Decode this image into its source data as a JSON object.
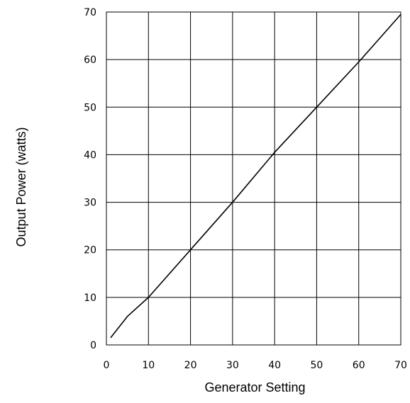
{
  "chart_data": {
    "type": "line",
    "title": "",
    "xlabel": "Generator Setting",
    "ylabel": "Output Power (watts)",
    "xlim": [
      0,
      70
    ],
    "ylim": [
      0,
      70
    ],
    "xticks": [
      0,
      10,
      20,
      30,
      40,
      50,
      60,
      70
    ],
    "yticks": [
      0,
      10,
      20,
      30,
      40,
      50,
      60,
      70
    ],
    "grid": true,
    "series": [
      {
        "color": "#000000",
        "x": [
          1,
          5,
          10,
          20,
          30,
          40,
          50,
          60,
          70
        ],
        "y": [
          1.5,
          6,
          10,
          20,
          30,
          40.5,
          50,
          59.5,
          69.5
        ]
      }
    ]
  }
}
